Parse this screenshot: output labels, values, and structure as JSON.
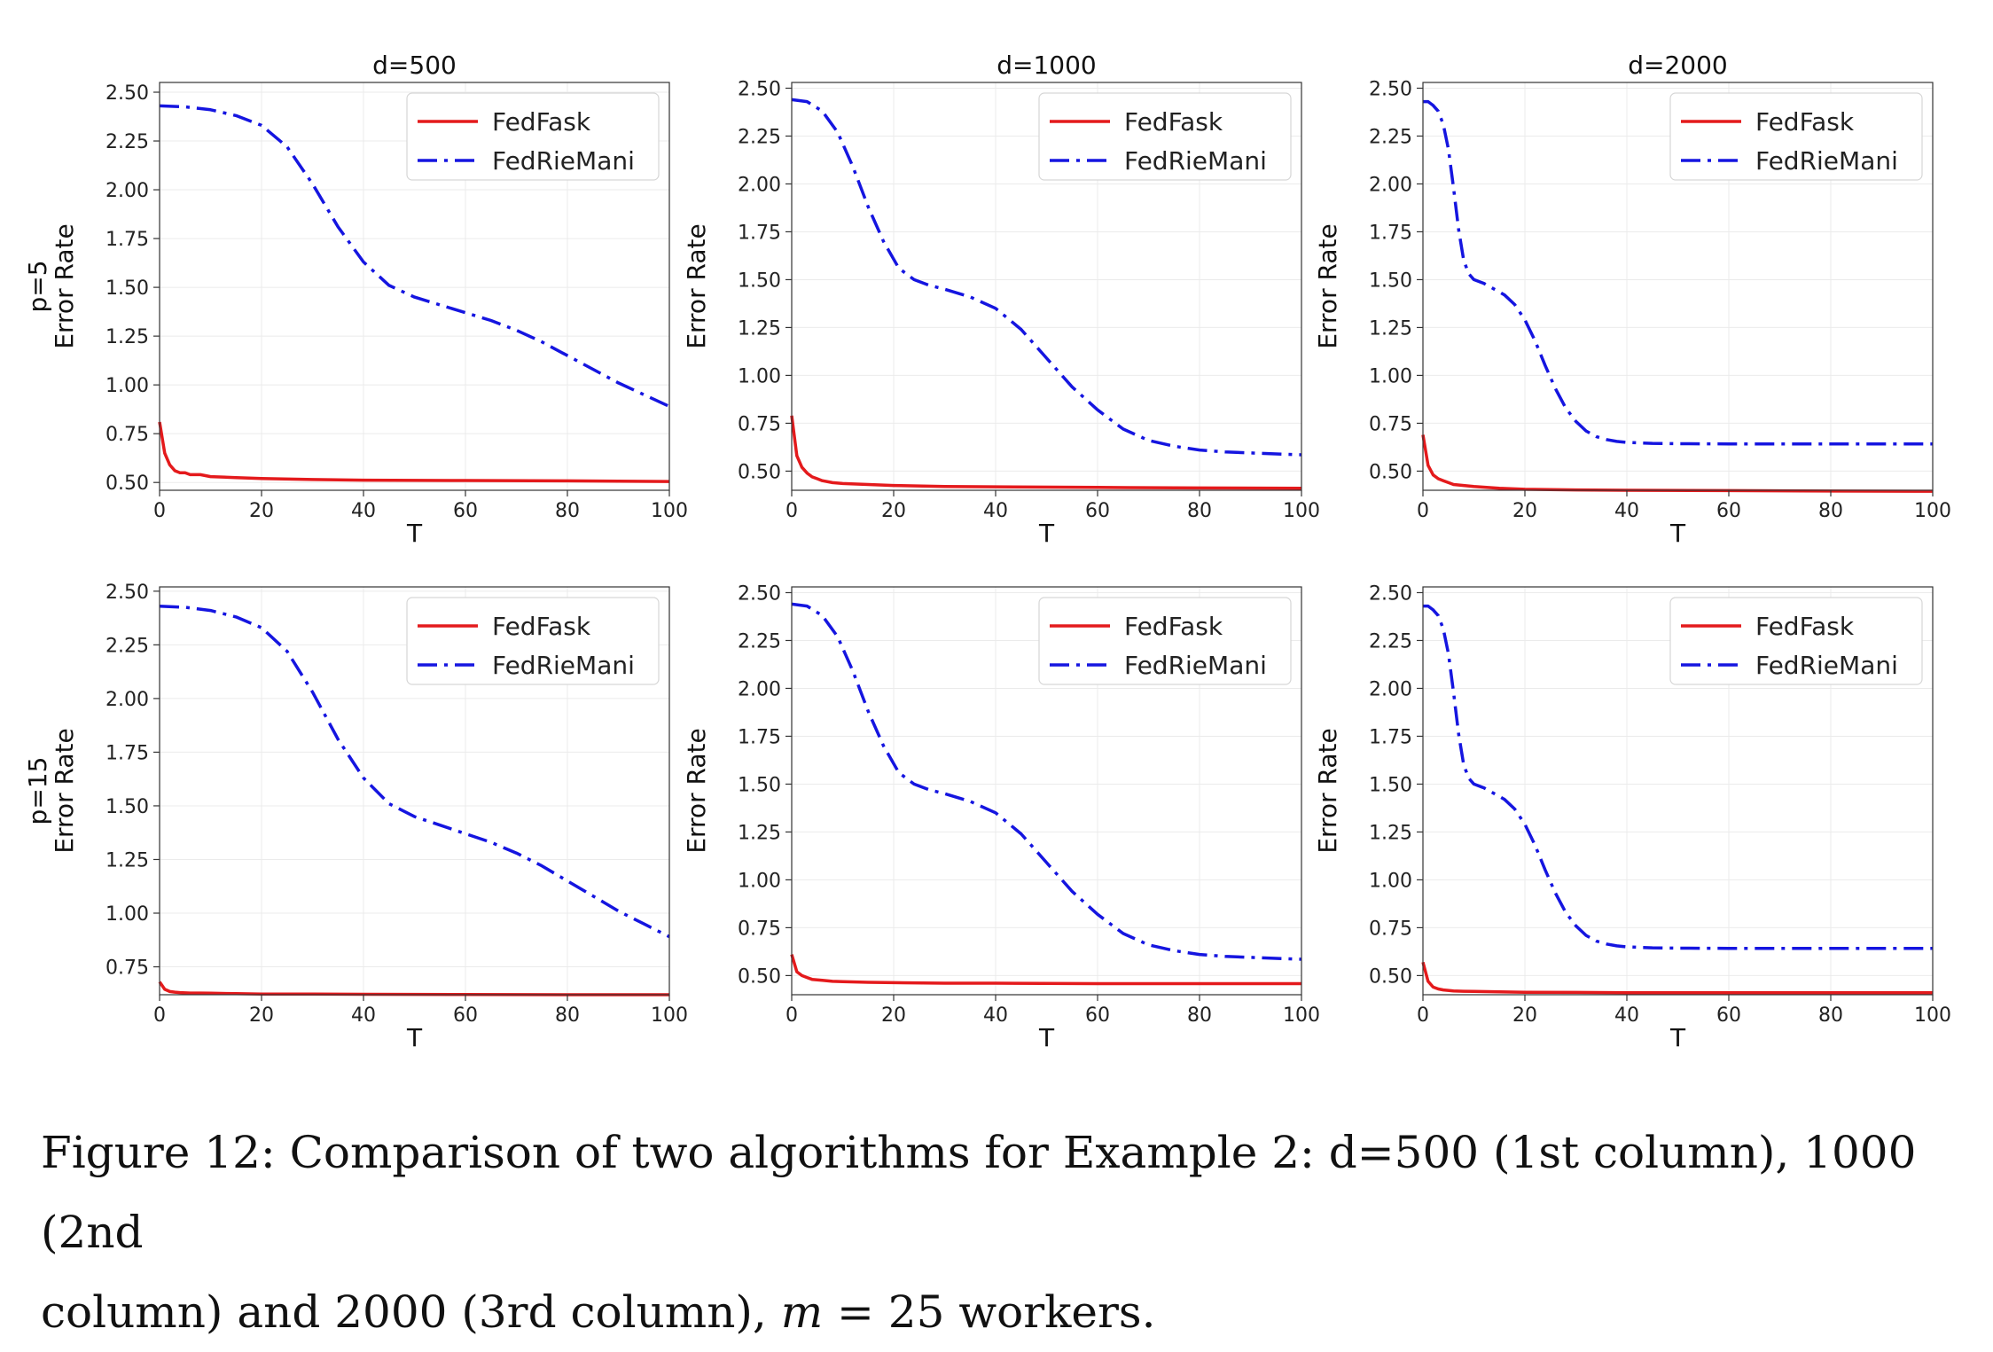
{
  "chart_data": [
    {
      "type": "line",
      "title": "d=500",
      "row_label": "p=5",
      "xlabel": "T",
      "ylabel": "Error Rate",
      "xlim": [
        0,
        100
      ],
      "ylim": [
        0.46,
        2.55
      ],
      "xticks": [
        "0",
        "20",
        "40",
        "60",
        "80",
        "100"
      ],
      "yticks": [
        "0.50",
        "0.75",
        "1.00",
        "1.25",
        "1.50",
        "1.75",
        "2.00",
        "2.25",
        "2.50"
      ],
      "grid": true,
      "legend": "top-right",
      "series": [
        {
          "name": "FedFask",
          "color": "#e41a1c",
          "style": "solid",
          "x": [
            0,
            1,
            2,
            3,
            4,
            5,
            6,
            8,
            10,
            15,
            20,
            30,
            40,
            60,
            80,
            100
          ],
          "y": [
            0.81,
            0.65,
            0.59,
            0.56,
            0.55,
            0.55,
            0.54,
            0.54,
            0.53,
            0.525,
            0.52,
            0.515,
            0.512,
            0.51,
            0.508,
            0.505
          ]
        },
        {
          "name": "FedRieMani",
          "color": "#1515e0",
          "style": "dashdot",
          "x": [
            0,
            5,
            10,
            15,
            20,
            25,
            30,
            35,
            40,
            45,
            50,
            55,
            60,
            65,
            70,
            75,
            80,
            85,
            90,
            95,
            100
          ],
          "y": [
            2.43,
            2.425,
            2.41,
            2.38,
            2.33,
            2.22,
            2.03,
            1.81,
            1.63,
            1.51,
            1.45,
            1.41,
            1.37,
            1.33,
            1.28,
            1.22,
            1.15,
            1.08,
            1.01,
            0.95,
            0.89
          ]
        }
      ]
    },
    {
      "type": "line",
      "title": "d=1000",
      "row_label": "",
      "xlabel": "T",
      "ylabel": "Error Rate",
      "xlim": [
        0,
        100
      ],
      "ylim": [
        0.4,
        2.53
      ],
      "xticks": [
        "0",
        "20",
        "40",
        "60",
        "80",
        "100"
      ],
      "yticks": [
        "0.50",
        "0.75",
        "1.00",
        "1.25",
        "1.50",
        "1.75",
        "2.00",
        "2.25",
        "2.50"
      ],
      "grid": true,
      "legend": "top-right",
      "series": [
        {
          "name": "FedFask",
          "color": "#e41a1c",
          "style": "solid",
          "x": [
            0,
            1,
            2,
            3,
            4,
            5,
            6,
            8,
            10,
            15,
            20,
            30,
            40,
            60,
            80,
            100
          ],
          "y": [
            0.79,
            0.58,
            0.52,
            0.49,
            0.47,
            0.46,
            0.45,
            0.44,
            0.435,
            0.43,
            0.425,
            0.42,
            0.418,
            0.415,
            0.412,
            0.41
          ]
        },
        {
          "name": "FedRieMani",
          "color": "#1515e0",
          "style": "dashdot",
          "x": [
            0,
            3,
            6,
            9,
            12,
            15,
            18,
            21,
            24,
            27,
            30,
            35,
            40,
            45,
            50,
            55,
            60,
            65,
            70,
            75,
            80,
            85,
            90,
            95,
            100
          ],
          "y": [
            2.44,
            2.43,
            2.38,
            2.27,
            2.09,
            1.88,
            1.7,
            1.56,
            1.5,
            1.47,
            1.45,
            1.41,
            1.35,
            1.24,
            1.09,
            0.94,
            0.82,
            0.72,
            0.66,
            0.63,
            0.61,
            0.6,
            0.595,
            0.59,
            0.585
          ]
        }
      ]
    },
    {
      "type": "line",
      "title": "d=2000",
      "row_label": "",
      "xlabel": "T",
      "ylabel": "Error Rate",
      "xlim": [
        0,
        100
      ],
      "ylim": [
        0.4,
        2.53
      ],
      "xticks": [
        "0",
        "20",
        "40",
        "60",
        "80",
        "100"
      ],
      "yticks": [
        "0.50",
        "0.75",
        "1.00",
        "1.25",
        "1.50",
        "1.75",
        "2.00",
        "2.25",
        "2.50"
      ],
      "grid": true,
      "legend": "top-right",
      "series": [
        {
          "name": "FedFask",
          "color": "#e41a1c",
          "style": "solid",
          "x": [
            0,
            1,
            2,
            3,
            4,
            5,
            6,
            8,
            10,
            15,
            20,
            30,
            40,
            60,
            80,
            100
          ],
          "y": [
            0.69,
            0.53,
            0.48,
            0.46,
            0.45,
            0.44,
            0.43,
            0.425,
            0.42,
            0.41,
            0.405,
            0.402,
            0.4,
            0.398,
            0.396,
            0.395
          ]
        },
        {
          "name": "FedRieMani",
          "color": "#1515e0",
          "style": "dashdot",
          "x": [
            0,
            1,
            2,
            3,
            4,
            5,
            6,
            7,
            8,
            9,
            10,
            12,
            14,
            16,
            18,
            20,
            22,
            24,
            26,
            28,
            30,
            32,
            34,
            36,
            38,
            40,
            45,
            50,
            60,
            70,
            80,
            90,
            100
          ],
          "y": [
            2.43,
            2.43,
            2.41,
            2.38,
            2.31,
            2.18,
            1.98,
            1.76,
            1.6,
            1.53,
            1.5,
            1.48,
            1.45,
            1.42,
            1.37,
            1.29,
            1.18,
            1.05,
            0.93,
            0.83,
            0.76,
            0.71,
            0.68,
            0.665,
            0.655,
            0.65,
            0.645,
            0.643,
            0.642,
            0.642,
            0.642,
            0.642,
            0.642
          ]
        }
      ]
    },
    {
      "type": "line",
      "title": "",
      "row_label": "p=15",
      "xlabel": "T",
      "ylabel": "Error Rate",
      "xlim": [
        0,
        100
      ],
      "ylim": [
        0.62,
        2.52
      ],
      "xticks": [
        "0",
        "20",
        "40",
        "60",
        "80",
        "100"
      ],
      "yticks": [
        "0.75",
        "1.00",
        "1.25",
        "1.50",
        "1.75",
        "2.00",
        "2.25",
        "2.50"
      ],
      "grid": true,
      "legend": "top-right",
      "series": [
        {
          "name": "FedFask",
          "color": "#e41a1c",
          "style": "solid",
          "x": [
            0,
            1,
            2,
            3,
            4,
            6,
            8,
            10,
            15,
            20,
            30,
            40,
            60,
            80,
            100
          ],
          "y": [
            0.68,
            0.645,
            0.635,
            0.632,
            0.63,
            0.628,
            0.628,
            0.627,
            0.625,
            0.623,
            0.623,
            0.622,
            0.621,
            0.62,
            0.62
          ]
        },
        {
          "name": "FedRieMani",
          "color": "#1515e0",
          "style": "dashdot",
          "x": [
            0,
            5,
            10,
            15,
            20,
            25,
            30,
            35,
            40,
            45,
            50,
            55,
            60,
            65,
            70,
            75,
            80,
            85,
            90,
            95,
            100
          ],
          "y": [
            2.43,
            2.425,
            2.41,
            2.38,
            2.33,
            2.22,
            2.03,
            1.81,
            1.63,
            1.51,
            1.45,
            1.41,
            1.37,
            1.33,
            1.28,
            1.22,
            1.15,
            1.08,
            1.01,
            0.95,
            0.89
          ]
        }
      ]
    },
    {
      "type": "line",
      "title": "",
      "row_label": "",
      "xlabel": "T",
      "ylabel": "Error Rate",
      "xlim": [
        0,
        100
      ],
      "ylim": [
        0.4,
        2.53
      ],
      "xticks": [
        "0",
        "20",
        "40",
        "60",
        "80",
        "100"
      ],
      "yticks": [
        "0.50",
        "0.75",
        "1.00",
        "1.25",
        "1.50",
        "1.75",
        "2.00",
        "2.25",
        "2.50"
      ],
      "grid": true,
      "legend": "top-right",
      "series": [
        {
          "name": "FedFask",
          "color": "#e41a1c",
          "style": "solid",
          "x": [
            0,
            1,
            2,
            3,
            4,
            6,
            8,
            10,
            15,
            20,
            30,
            40,
            60,
            80,
            100
          ],
          "y": [
            0.61,
            0.52,
            0.5,
            0.49,
            0.48,
            0.475,
            0.47,
            0.468,
            0.465,
            0.463,
            0.46,
            0.46,
            0.458,
            0.458,
            0.458
          ]
        },
        {
          "name": "FedRieMani",
          "color": "#1515e0",
          "style": "dashdot",
          "x": [
            0,
            3,
            6,
            9,
            12,
            15,
            18,
            21,
            24,
            27,
            30,
            35,
            40,
            45,
            50,
            55,
            60,
            65,
            70,
            75,
            80,
            85,
            90,
            95,
            100
          ],
          "y": [
            2.44,
            2.43,
            2.38,
            2.27,
            2.09,
            1.88,
            1.7,
            1.56,
            1.5,
            1.47,
            1.45,
            1.41,
            1.35,
            1.24,
            1.09,
            0.94,
            0.82,
            0.72,
            0.66,
            0.63,
            0.61,
            0.6,
            0.595,
            0.59,
            0.585
          ]
        }
      ]
    },
    {
      "type": "line",
      "title": "",
      "row_label": "",
      "xlabel": "T",
      "ylabel": "Error Rate",
      "xlim": [
        0,
        100
      ],
      "ylim": [
        0.4,
        2.53
      ],
      "xticks": [
        "0",
        "20",
        "40",
        "60",
        "80",
        "100"
      ],
      "yticks": [
        "0.50",
        "0.75",
        "1.00",
        "1.25",
        "1.50",
        "1.75",
        "2.00",
        "2.25",
        "2.50"
      ],
      "grid": true,
      "legend": "top-right",
      "series": [
        {
          "name": "FedFask",
          "color": "#e41a1c",
          "style": "solid",
          "x": [
            0,
            1,
            2,
            3,
            4,
            6,
            8,
            10,
            15,
            20,
            30,
            40,
            60,
            80,
            100
          ],
          "y": [
            0.57,
            0.47,
            0.44,
            0.43,
            0.425,
            0.42,
            0.418,
            0.417,
            0.415,
            0.413,
            0.412,
            0.41,
            0.41,
            0.41,
            0.41
          ]
        },
        {
          "name": "FedRieMani",
          "color": "#1515e0",
          "style": "dashdot",
          "x": [
            0,
            1,
            2,
            3,
            4,
            5,
            6,
            7,
            8,
            9,
            10,
            12,
            14,
            16,
            18,
            20,
            22,
            24,
            26,
            28,
            30,
            32,
            34,
            36,
            38,
            40,
            45,
            50,
            60,
            70,
            80,
            90,
            100
          ],
          "y": [
            2.43,
            2.43,
            2.41,
            2.38,
            2.31,
            2.18,
            1.98,
            1.76,
            1.6,
            1.53,
            1.5,
            1.48,
            1.45,
            1.42,
            1.37,
            1.29,
            1.18,
            1.05,
            0.93,
            0.83,
            0.76,
            0.71,
            0.68,
            0.665,
            0.655,
            0.65,
            0.645,
            0.643,
            0.642,
            0.642,
            0.642,
            0.642,
            0.642
          ]
        }
      ]
    }
  ],
  "caption": {
    "line1": "Figure 12: Comparison of two algorithms for Example 2: d=500 (1st column), 1000 (2nd",
    "line2_pre": "column) and 2000 (3rd column), ",
    "line2_var": "m",
    "line2_post": " = 25 workers."
  }
}
